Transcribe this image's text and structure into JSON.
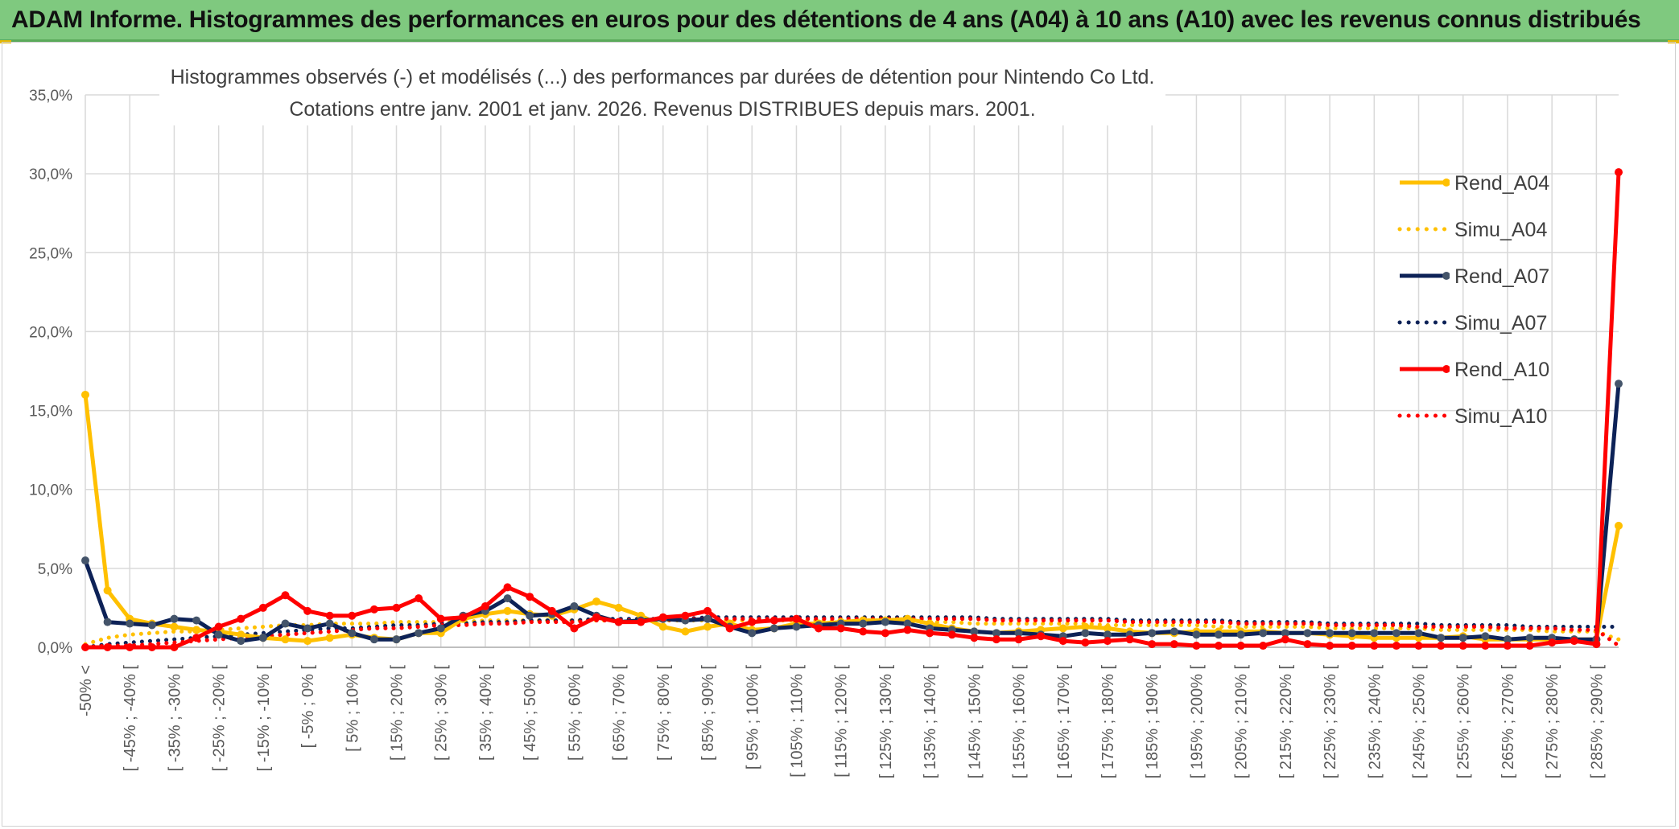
{
  "banner": {
    "title": "ADAM Informe. Histogrammes des performances en euros pour des détentions de 4 ans (A04) à 10 ans (A10) avec les revenus connus distribués"
  },
  "chart_data": {
    "type": "line",
    "title": "Histogrammes observés (-) et modélisés (...) des performances par durées de détention pour Nintendo Co Ltd.",
    "subtitle": "Cotations entre janv. 2001 et janv. 2026. Revenus DISTRIBUES depuis mars. 2001.",
    "xlabel": "",
    "ylabel": "",
    "ylim": [
      0,
      35
    ],
    "y_ticks": [
      "0,0%",
      "5,0%",
      "10,0%",
      "15,0%",
      "20,0%",
      "25,0%",
      "30,0%",
      "35,0%"
    ],
    "grid": true,
    "legend_position": "right",
    "x_tick_labels": [
      "-50% <",
      "[ -45% ; -40% [",
      "[ -35% ; -30% [",
      "[ -25% ; -20% [",
      "[ -15% ; -10% [",
      "[ -5% ; 0% [",
      "[ 5% ; 10% [",
      "[ 15% ; 20% [",
      "[ 25% ; 30% [",
      "[ 35% ; 40% [",
      "[ 45% ; 50% [",
      "[ 55% ; 60% [",
      "[ 65% ; 70% [",
      "[ 75% ; 80% [",
      "[ 85% ; 90% [",
      "[ 95% ; 100% [",
      "[ 105% ; 110% [",
      "[ 115% ; 120% [",
      "[ 125% ; 130% [",
      "[ 135% ; 140% [",
      "[ 145% ; 150% [",
      "[ 155% ; 160% [",
      "[ 165% ; 170% [",
      "[ 175% ; 180% [",
      "[ 185% ; 190% [",
      "[ 195% ; 200% [",
      "[ 205% ; 210% [",
      "[ 215% ; 220% [",
      "[ 225% ; 230% [",
      "[ 235% ; 240% [",
      "[ 245% ; 250% [",
      "[ 255% ; 260% [",
      "[ 265% ; 270% [",
      "[ 275% ; 280% [",
      "[ 285% ; 290% ["
    ],
    "n_categories": 70,
    "series": [
      {
        "name": "Rend_A04",
        "style": "solid",
        "color": "#ffc000",
        "values": [
          16.0,
          3.6,
          1.8,
          1.5,
          1.3,
          1.1,
          1.0,
          0.8,
          0.6,
          0.5,
          0.4,
          0.6,
          0.8,
          0.6,
          0.5,
          0.9,
          0.9,
          1.8,
          2.1,
          2.3,
          2.1,
          2.0,
          2.4,
          2.9,
          2.5,
          2.0,
          1.3,
          1.0,
          1.3,
          1.5,
          1.1,
          1.2,
          1.5,
          1.5,
          1.6,
          1.7,
          1.7,
          1.8,
          1.5,
          1.2,
          1.0,
          0.9,
          1.0,
          1.1,
          1.2,
          1.3,
          1.2,
          1.0,
          0.9,
          0.9,
          1.0,
          1.0,
          1.0,
          1.0,
          0.9,
          0.9,
          0.8,
          0.7,
          0.6,
          0.6,
          0.6,
          0.6,
          0.7,
          0.5,
          0.5,
          0.5,
          0.5,
          0.5,
          0.5,
          7.7
        ]
      },
      {
        "name": "Simu_A04",
        "style": "dotted",
        "color": "#ffc000",
        "values": [
          0.2,
          0.6,
          0.8,
          0.9,
          1.0,
          1.0,
          1.1,
          1.2,
          1.3,
          1.4,
          1.4,
          1.5,
          1.5,
          1.5,
          1.6,
          1.6,
          1.6,
          1.6,
          1.7,
          1.7,
          1.7,
          1.7,
          1.7,
          1.7,
          1.7,
          1.7,
          1.7,
          1.7,
          1.7,
          1.7,
          1.7,
          1.7,
          1.7,
          1.7,
          1.6,
          1.6,
          1.6,
          1.6,
          1.6,
          1.6,
          1.5,
          1.5,
          1.5,
          1.5,
          1.5,
          1.5,
          1.4,
          1.4,
          1.4,
          1.4,
          1.4,
          1.3,
          1.3,
          1.3,
          1.3,
          1.3,
          1.2,
          1.2,
          1.2,
          1.2,
          1.2,
          1.1,
          1.1,
          1.1,
          1.1,
          1.1,
          1.0,
          1.0,
          1.0,
          0.5
        ]
      },
      {
        "name": "Rend_A07",
        "style": "solid",
        "color": "#0d2257",
        "marker": "#44546a",
        "values": [
          5.5,
          1.6,
          1.5,
          1.4,
          1.8,
          1.7,
          0.8,
          0.4,
          0.6,
          1.5,
          1.2,
          1.5,
          0.9,
          0.5,
          0.5,
          0.9,
          1.2,
          2.0,
          2.3,
          3.1,
          2.0,
          2.1,
          2.6,
          2.0,
          1.6,
          1.7,
          1.8,
          1.7,
          1.8,
          1.3,
          0.9,
          1.2,
          1.3,
          1.4,
          1.5,
          1.5,
          1.6,
          1.5,
          1.2,
          1.1,
          1.0,
          0.9,
          0.9,
          0.8,
          0.7,
          0.9,
          0.8,
          0.8,
          0.9,
          1.0,
          0.8,
          0.8,
          0.8,
          0.9,
          0.9,
          0.9,
          0.9,
          0.9,
          0.9,
          0.9,
          0.9,
          0.6,
          0.6,
          0.7,
          0.5,
          0.6,
          0.6,
          0.5,
          0.5,
          16.7
        ]
      },
      {
        "name": "Simu_A07",
        "style": "dotted",
        "color": "#0d2257",
        "values": [
          0.0,
          0.2,
          0.3,
          0.4,
          0.5,
          0.6,
          0.7,
          0.8,
          0.9,
          1.0,
          1.1,
          1.2,
          1.2,
          1.3,
          1.4,
          1.4,
          1.5,
          1.5,
          1.6,
          1.6,
          1.7,
          1.7,
          1.7,
          1.8,
          1.8,
          1.8,
          1.8,
          1.8,
          1.9,
          1.9,
          1.9,
          1.9,
          1.9,
          1.9,
          1.9,
          1.9,
          1.9,
          1.9,
          1.9,
          1.9,
          1.9,
          1.8,
          1.8,
          1.8,
          1.8,
          1.8,
          1.8,
          1.7,
          1.7,
          1.7,
          1.7,
          1.7,
          1.6,
          1.6,
          1.6,
          1.6,
          1.5,
          1.5,
          1.5,
          1.5,
          1.5,
          1.4,
          1.4,
          1.4,
          1.4,
          1.3,
          1.3,
          1.3,
          1.3,
          1.3
        ]
      },
      {
        "name": "Rend_A10",
        "style": "solid",
        "color": "#ff0000",
        "values": [
          0.0,
          0.0,
          0.0,
          0.0,
          0.0,
          0.6,
          1.3,
          1.8,
          2.5,
          3.3,
          2.3,
          2.0,
          2.0,
          2.4,
          2.5,
          3.1,
          1.8,
          1.9,
          2.6,
          3.8,
          3.2,
          2.3,
          1.2,
          1.9,
          1.6,
          1.6,
          1.9,
          2.0,
          2.3,
          1.2,
          1.6,
          1.7,
          1.8,
          1.2,
          1.2,
          1.0,
          0.9,
          1.1,
          0.9,
          0.8,
          0.6,
          0.5,
          0.5,
          0.7,
          0.4,
          0.3,
          0.4,
          0.5,
          0.2,
          0.2,
          0.1,
          0.1,
          0.1,
          0.1,
          0.5,
          0.2,
          0.1,
          0.1,
          0.1,
          0.1,
          0.1,
          0.1,
          0.1,
          0.1,
          0.1,
          0.1,
          0.3,
          0.4,
          0.2,
          30.1
        ]
      },
      {
        "name": "Simu_A10",
        "style": "dotted",
        "color": "#ff0000",
        "values": [
          0.0,
          0.1,
          0.1,
          0.2,
          0.3,
          0.4,
          0.5,
          0.6,
          0.7,
          0.8,
          0.9,
          1.0,
          1.1,
          1.2,
          1.2,
          1.3,
          1.4,
          1.4,
          1.5,
          1.5,
          1.6,
          1.6,
          1.6,
          1.7,
          1.7,
          1.7,
          1.7,
          1.8,
          1.8,
          1.8,
          1.8,
          1.8,
          1.8,
          1.8,
          1.8,
          1.8,
          1.8,
          1.8,
          1.8,
          1.8,
          1.8,
          1.7,
          1.7,
          1.7,
          1.7,
          1.7,
          1.7,
          1.6,
          1.6,
          1.6,
          1.6,
          1.6,
          1.5,
          1.5,
          1.5,
          1.5,
          1.4,
          1.4,
          1.4,
          1.4,
          1.3,
          1.3,
          1.3,
          1.3,
          1.2,
          1.2,
          1.2,
          1.1,
          1.1,
          0.1
        ]
      }
    ]
  }
}
